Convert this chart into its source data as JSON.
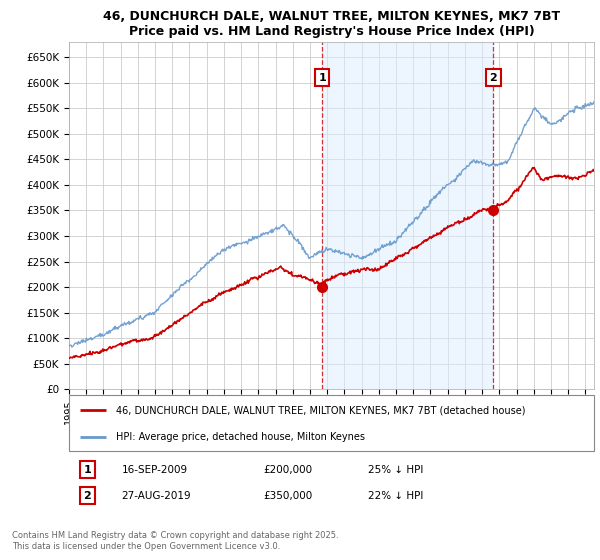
{
  "title_line1": "46, DUNCHURCH DALE, WALNUT TREE, MILTON KEYNES, MK7 7BT",
  "title_line2": "Price paid vs. HM Land Registry's House Price Index (HPI)",
  "ylabel_ticks": [
    "£0",
    "£50K",
    "£100K",
    "£150K",
    "£200K",
    "£250K",
    "£300K",
    "£350K",
    "£400K",
    "£450K",
    "£500K",
    "£550K",
    "£600K",
    "£650K"
  ],
  "ytick_values": [
    0,
    50000,
    100000,
    150000,
    200000,
    250000,
    300000,
    350000,
    400000,
    450000,
    500000,
    550000,
    600000,
    650000
  ],
  "ylim": [
    0,
    680000
  ],
  "xlim_start": 1995.0,
  "xlim_end": 2025.5,
  "background_color": "#ffffff",
  "plot_bg_color": "#ffffff",
  "grid_color": "#cccccc",
  "hpi_color": "#6699cc",
  "property_color": "#cc0000",
  "marker1_x": 2009.71,
  "marker1_y": 200000,
  "marker2_x": 2019.65,
  "marker2_y": 350000,
  "marker1_label": "16-SEP-2009",
  "marker1_price": "£200,000",
  "marker1_hpi": "25% ↓ HPI",
  "marker2_label": "27-AUG-2019",
  "marker2_price": "£350,000",
  "marker2_hpi": "22% ↓ HPI",
  "legend_line1": "46, DUNCHURCH DALE, WALNUT TREE, MILTON KEYNES, MK7 7BT (detached house)",
  "legend_line2": "HPI: Average price, detached house, Milton Keynes",
  "footer": "Contains HM Land Registry data © Crown copyright and database right 2025.\nThis data is licensed under the Open Government Licence v3.0.",
  "xticks": [
    1995,
    1996,
    1997,
    1998,
    1999,
    2000,
    2001,
    2002,
    2003,
    2004,
    2005,
    2006,
    2007,
    2008,
    2009,
    2010,
    2011,
    2012,
    2013,
    2014,
    2015,
    2016,
    2017,
    2018,
    2019,
    2020,
    2021,
    2022,
    2023,
    2024,
    2025
  ]
}
